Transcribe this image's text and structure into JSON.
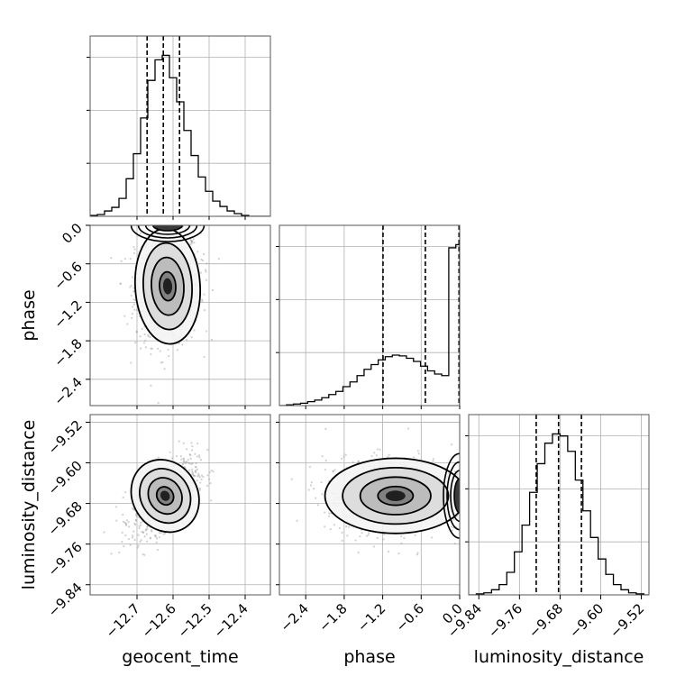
{
  "chart_data": {
    "type": "corner",
    "title": "",
    "parameters": [
      "geocent_time",
      "phase",
      "luminosity_distance"
    ],
    "labels": {
      "geocent_time": "geocent_time",
      "phase": "phase",
      "luminosity_distance": "luminosity_distance"
    },
    "ranges": {
      "geocent_time": [
        -12.83,
        -12.33
      ],
      "phase": [
        -2.81,
        0.0
      ],
      "luminosity_distance": [
        -9.86,
        -9.505
      ]
    },
    "ticks": {
      "geocent_time": [
        -12.7,
        -12.6,
        -12.5,
        -12.4
      ],
      "phase": [
        -2.4,
        -1.8,
        -1.2,
        -0.6,
        0.0
      ],
      "luminosity_distance": [
        -9.84,
        -9.76,
        -9.68,
        -9.6,
        -9.52
      ]
    },
    "tick_labels": {
      "geocent_time": [
        "−12.7",
        "−12.6",
        "−12.5",
        "−12.4"
      ],
      "phase": [
        "−2.4",
        "−1.8",
        "−1.2",
        "−0.6",
        "0.0"
      ],
      "luminosity_distance": [
        "−9.84",
        "−9.76",
        "−9.68",
        "−9.60",
        "−9.52"
      ]
    },
    "histograms": {
      "geocent_time": {
        "edges": [
          -12.83,
          -12.81,
          -12.79,
          -12.77,
          -12.75,
          -12.73,
          -12.71,
          -12.69,
          -12.67,
          -12.65,
          -12.63,
          -12.61,
          -12.59,
          -12.57,
          -12.55,
          -12.53,
          -12.51,
          -12.49,
          -12.47,
          -12.45,
          -12.43,
          -12.41,
          -12.39,
          -12.37,
          -12.35,
          -12.33
        ],
        "counts": [
          1,
          2,
          6,
          10,
          20,
          42,
          70,
          110,
          152,
          175,
          180,
          155,
          128,
          96,
          68,
          44,
          28,
          17,
          11,
          6,
          3,
          1,
          0,
          0,
          0
        ],
        "quantiles": [
          -12.672,
          -12.627,
          -12.582
        ]
      },
      "phase": {
        "edges": [
          -2.81,
          -2.7,
          -2.59,
          -2.48,
          -2.37,
          -2.26,
          -2.15,
          -2.04,
          -1.93,
          -1.82,
          -1.71,
          -1.6,
          -1.49,
          -1.38,
          -1.27,
          -1.16,
          -1.05,
          -0.94,
          -0.83,
          -0.72,
          -0.61,
          -0.5,
          -0.39,
          -0.28,
          -0.17,
          -0.06,
          0.0
        ],
        "counts": [
          0,
          1,
          2,
          3,
          5,
          7,
          10,
          14,
          18,
          24,
          30,
          38,
          46,
          52,
          58,
          62,
          64,
          63,
          60,
          56,
          50,
          44,
          40,
          38,
          200,
          204
        ],
        "quantiles": [
          -1.195,
          -0.535,
          -0.01
        ]
      },
      "luminosity_distance": {
        "edges": [
          -9.86,
          -9.845,
          -9.83,
          -9.815,
          -9.8,
          -9.785,
          -9.77,
          -9.755,
          -9.74,
          -9.725,
          -9.71,
          -9.695,
          -9.68,
          -9.665,
          -9.65,
          -9.635,
          -9.62,
          -9.605,
          -9.59,
          -9.575,
          -9.56,
          -9.545,
          -9.53,
          -9.515,
          -9.505
        ],
        "counts": [
          0,
          1,
          2,
          5,
          10,
          22,
          42,
          68,
          100,
          128,
          148,
          157,
          155,
          140,
          112,
          82,
          56,
          35,
          20,
          10,
          5,
          2,
          1,
          0
        ],
        "quantiles": [
          -9.727,
          -9.683,
          -9.638
        ]
      }
    },
    "pair_panels": [
      {
        "x": "geocent_time",
        "y": "phase",
        "center": [
          -12.615,
          -0.95
        ],
        "spread": [
          0.045,
          0.45
        ],
        "correlation": 0.05,
        "contour_levels": [
          0.5,
          1.0,
          1.5,
          2.0
        ],
        "points": 900
      },
      {
        "x": "geocent_time",
        "y": "luminosity_distance",
        "center": [
          -12.622,
          -9.665
        ],
        "spread": [
          0.045,
          0.037
        ],
        "correlation": 0.55,
        "contour_levels": [
          0.5,
          1.0,
          1.5,
          2.0
        ],
        "points": 900
      },
      {
        "x": "phase",
        "y": "luminosity_distance",
        "center": [
          -1.0,
          -9.665
        ],
        "spread": [
          0.55,
          0.037
        ],
        "correlation": 0.0,
        "contour_levels": [
          0.5,
          1.0,
          1.5,
          2.0
        ],
        "points": 900
      }
    ],
    "grid": true,
    "legend": "none",
    "colors": {
      "line": "#000000",
      "grid": "#b0b0b0",
      "points": "#9a9a9a",
      "density_dark": "#000000",
      "density_light": "#ffffff"
    }
  }
}
